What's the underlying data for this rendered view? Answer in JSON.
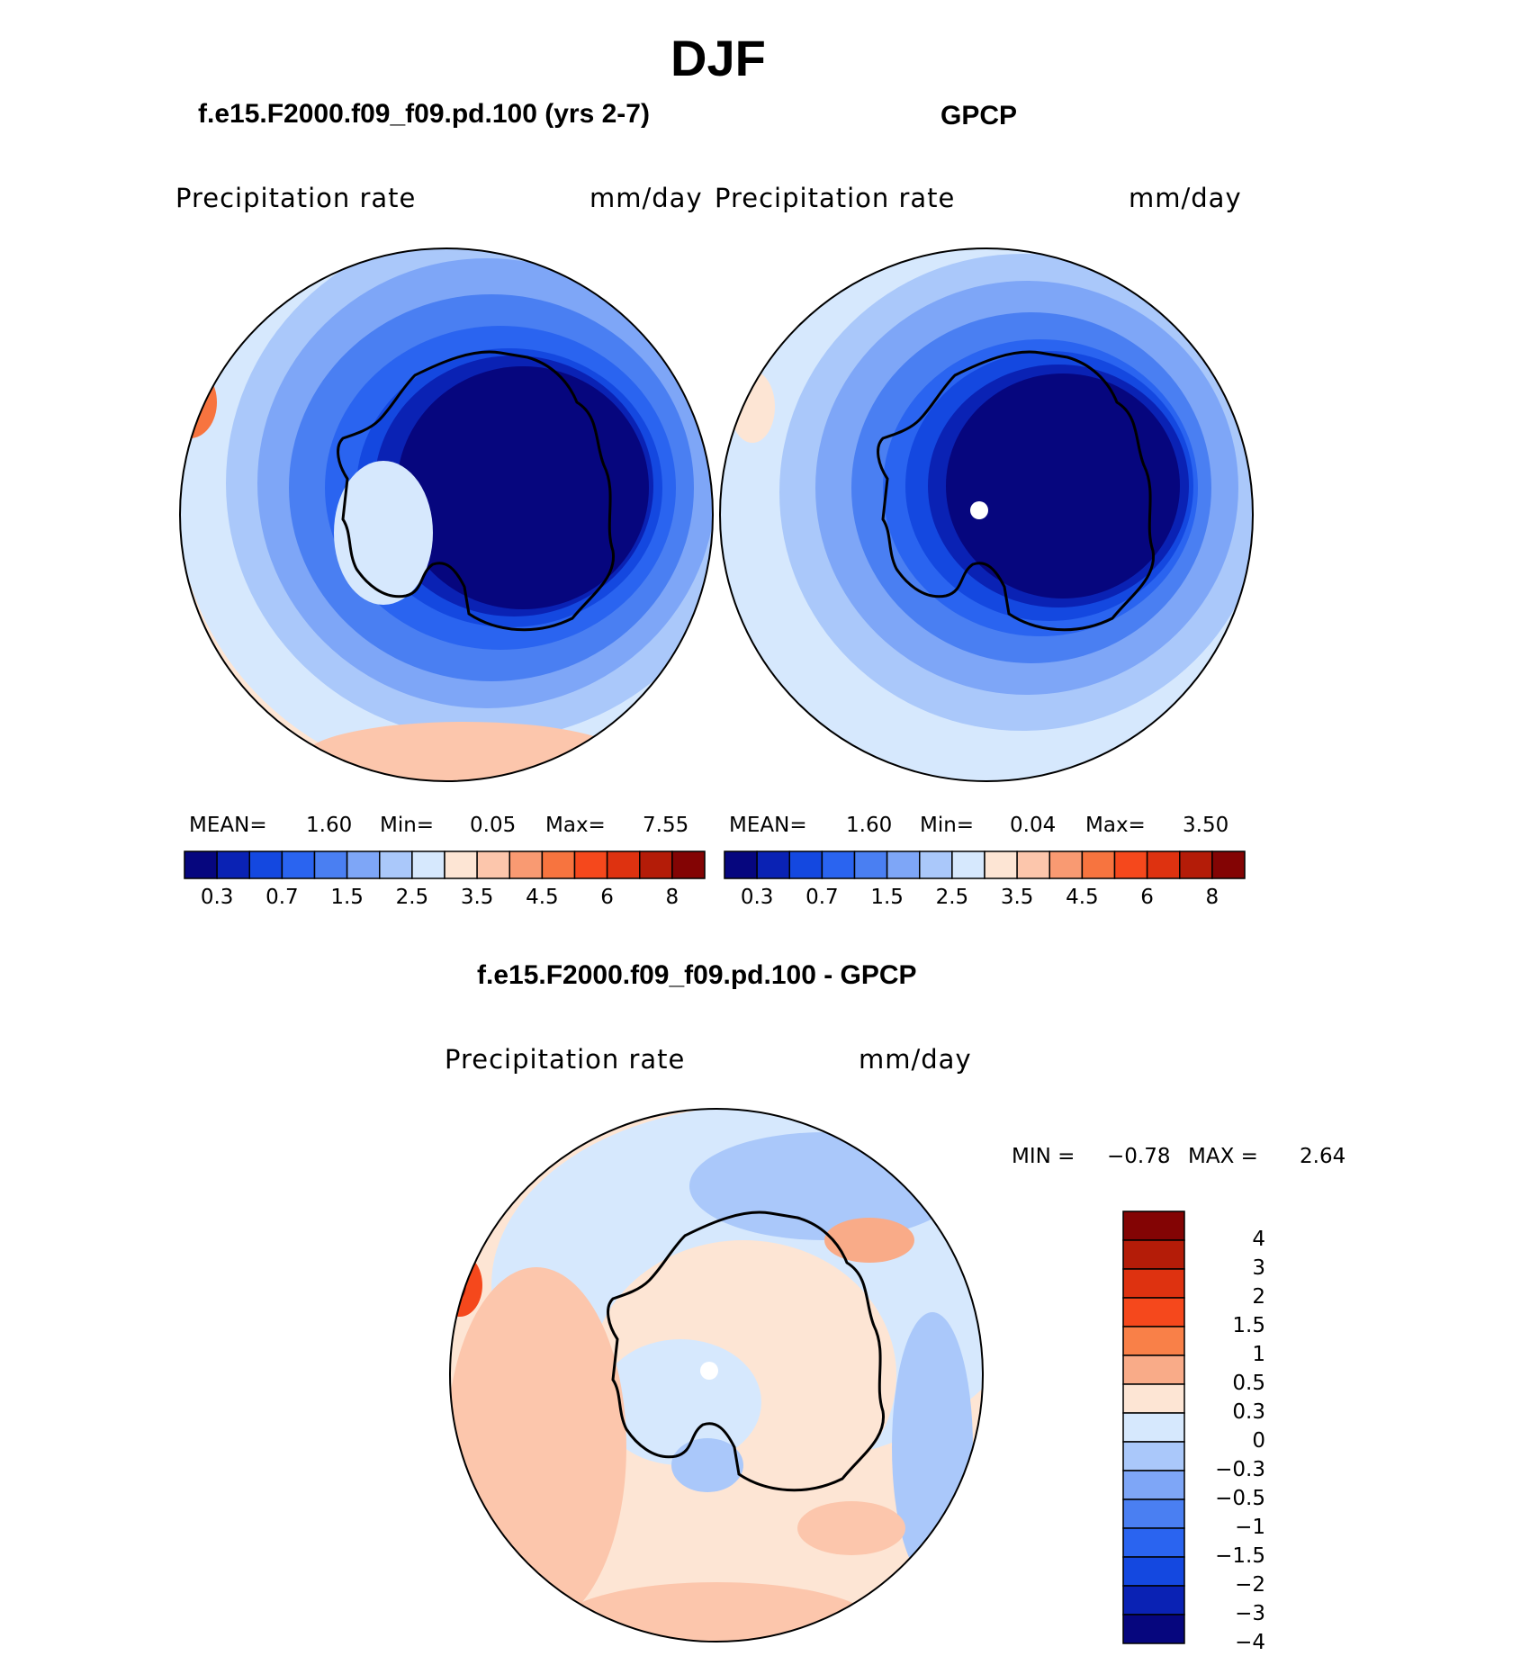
{
  "figure": {
    "title": "DJF"
  },
  "panels": [
    {
      "title": "f.e15.F2000.f09_f09.pd.100 (yrs 2-7)",
      "variable": "Precipitation  rate",
      "units": "mm/day",
      "stats": {
        "mean_label": "MEAN=",
        "mean": "1.60",
        "min_label": "Min=",
        "min": "0.05",
        "max_label": "Max=",
        "max": "7.55"
      }
    },
    {
      "title": "GPCP",
      "variable": "Precipitation  rate",
      "units": "mm/day",
      "stats": {
        "mean_label": "MEAN=",
        "mean": "1.60",
        "min_label": "Min=",
        "min": "0.04",
        "max_label": "Max=",
        "max": "3.50"
      }
    },
    {
      "title": "f.e15.F2000.f09_f09.pd.100 - GPCP",
      "variable": "Precipitation  rate",
      "units": "mm/day",
      "stats": {
        "min_label": "MIN =",
        "min": "−0.78",
        "max_label": "MAX =",
        "max": "2.64"
      }
    }
  ],
  "colorbar_abs": {
    "colors": [
      "#06067e",
      "#0a22b4",
      "#1448e0",
      "#2a64f0",
      "#4a7ff2",
      "#7ea6f7",
      "#aac8fa",
      "#d6e8fd",
      "#fde5d4",
      "#fcc6ac",
      "#f99a72",
      "#f7743f",
      "#f5481c",
      "#de3210",
      "#b41c08",
      "#830404"
    ],
    "tick_labels": [
      "0.3",
      "0.7",
      "1.5",
      "2.5",
      "3.5",
      "4.5",
      "6",
      "8"
    ]
  },
  "colorbar_diff": {
    "colors": [
      "#830404",
      "#b41c08",
      "#de3210",
      "#f5481c",
      "#f98048",
      "#f9ab88",
      "#fde5d4",
      "#d6e8fd",
      "#aac8fa",
      "#7ea6f7",
      "#4a7ff2",
      "#2a64f0",
      "#1448e0",
      "#0a22b4",
      "#06067e"
    ],
    "tick_labels": [
      "4",
      "3",
      "2",
      "1.5",
      "1",
      "0.5",
      "0.3",
      "0",
      "−0.3",
      "−0.5",
      "−1",
      "−1.5",
      "−2",
      "−3",
      "−4"
    ]
  },
  "maps": {
    "projection": "south-polar-stereographic",
    "region": "Antarctica"
  }
}
